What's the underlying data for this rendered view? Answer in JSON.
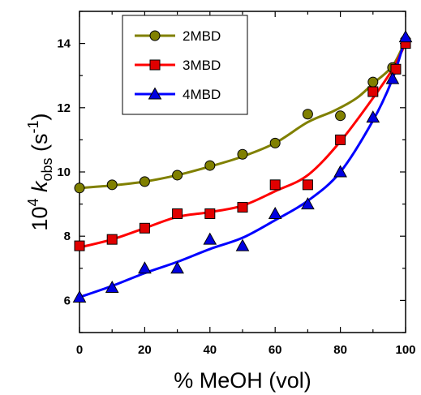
{
  "chart_data": {
    "type": "scatter",
    "xlabel": "% MeOH (vol)",
    "ylabel": {
      "base": "10",
      "exp": "4",
      "k": "k",
      "sub": "obs",
      "unit_open": " (s",
      "unit_exp": "-1",
      "unit_close": ")"
    },
    "xlim": [
      0,
      100
    ],
    "ylim": [
      5,
      15
    ],
    "x_ticks": [
      0,
      20,
      40,
      60,
      80,
      100
    ],
    "y_ticks": [
      6,
      8,
      10,
      12,
      14
    ],
    "grid": false,
    "legend_position": "top-left",
    "series": [
      {
        "name": "2MBD",
        "marker": "circle",
        "marker_color": "#808000",
        "line_color": "#808000",
        "x": [
          0,
          10,
          20,
          30,
          40,
          50,
          60,
          70,
          80,
          90,
          96,
          100
        ],
        "y": [
          9.5,
          9.6,
          9.7,
          9.9,
          10.2,
          10.55,
          10.9,
          11.8,
          11.75,
          12.8,
          13.25,
          14.1
        ],
        "fit": [
          [
            0,
            9.5
          ],
          [
            10,
            9.58
          ],
          [
            20,
            9.7
          ],
          [
            30,
            9.9
          ],
          [
            40,
            10.17
          ],
          [
            50,
            10.48
          ],
          [
            60,
            10.9
          ],
          [
            70,
            11.55
          ],
          [
            78,
            11.9
          ],
          [
            85,
            12.3
          ],
          [
            90,
            12.75
          ],
          [
            96,
            13.3
          ],
          [
            100,
            14.1
          ]
        ]
      },
      {
        "name": "3MBD",
        "marker": "square",
        "marker_color": "#e00000",
        "line_color": "#ff0000",
        "x": [
          0,
          10,
          20,
          30,
          40,
          50,
          60,
          70,
          80,
          90,
          97,
          100
        ],
        "y": [
          7.7,
          7.9,
          8.25,
          8.7,
          8.7,
          8.9,
          9.6,
          9.6,
          11.0,
          12.5,
          13.2,
          14.0
        ],
        "fit": [
          [
            0,
            7.65
          ],
          [
            10,
            7.9
          ],
          [
            20,
            8.25
          ],
          [
            30,
            8.6
          ],
          [
            40,
            8.75
          ],
          [
            50,
            8.95
          ],
          [
            60,
            9.4
          ],
          [
            70,
            9.9
          ],
          [
            80,
            10.95
          ],
          [
            90,
            12.3
          ],
          [
            96,
            13.2
          ],
          [
            100,
            14.0
          ]
        ]
      },
      {
        "name": "4MBD",
        "marker": "triangle",
        "marker_color": "#0000e0",
        "line_color": "#0000ff",
        "x": [
          0,
          10,
          20,
          30,
          40,
          50,
          60,
          70,
          80,
          90,
          96,
          100
        ],
        "y": [
          6.1,
          6.4,
          7.0,
          7.0,
          7.9,
          7.7,
          8.7,
          9.0,
          10.0,
          11.7,
          12.9,
          14.2
        ],
        "fit": [
          [
            0,
            6.1
          ],
          [
            10,
            6.45
          ],
          [
            20,
            6.85
          ],
          [
            30,
            7.2
          ],
          [
            40,
            7.6
          ],
          [
            50,
            7.95
          ],
          [
            60,
            8.5
          ],
          [
            70,
            9.1
          ],
          [
            80,
            10.0
          ],
          [
            90,
            11.6
          ],
          [
            96,
            12.9
          ],
          [
            100,
            14.2
          ]
        ]
      }
    ]
  }
}
